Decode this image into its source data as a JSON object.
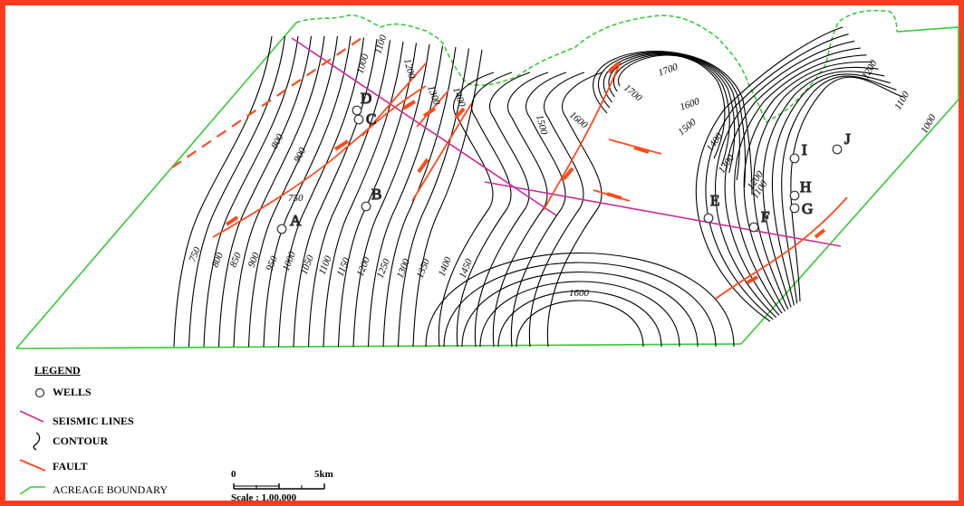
{
  "map": {
    "contour_labels_left": [
      "750",
      "800",
      "850",
      "900",
      "950",
      "1000",
      "1050",
      "1100",
      "1150",
      "1200",
      "1250",
      "1300",
      "1350",
      "1400",
      "1450"
    ],
    "contour_labels_inner": [
      "750",
      "800",
      "900",
      "1000",
      "1100",
      "1200",
      "1300",
      "1400"
    ],
    "contour_labels_center": [
      "1500",
      "1600",
      "1700",
      "1700",
      "1600",
      "1500",
      "1400",
      "1300",
      "1200",
      "1100",
      "1200",
      "1100",
      "1000"
    ],
    "contour_label_1600_low": "1600",
    "wells": [
      {
        "id": "A"
      },
      {
        "id": "B"
      },
      {
        "id": "C"
      },
      {
        "id": "D"
      },
      {
        "id": "E"
      },
      {
        "id": "F"
      },
      {
        "id": "G"
      },
      {
        "id": "H"
      },
      {
        "id": "I"
      },
      {
        "id": "J"
      }
    ],
    "colors": {
      "frame": "#ff3b1f",
      "fault": "#ff4a1a",
      "seismic": "#cc2a9a",
      "contour": "#000000",
      "boundary": "#33cc33"
    }
  },
  "legend": {
    "title": "LEGEND",
    "wells": "WELLS",
    "seismic_lines": "SEISMIC LINES",
    "contour": "CONTOUR",
    "fault": "FAULT",
    "acreage_boundary": "ACREAGE BOUNDARY"
  },
  "scale": {
    "start": "0",
    "end": "5km",
    "text": "Scale : 1.00.000"
  }
}
